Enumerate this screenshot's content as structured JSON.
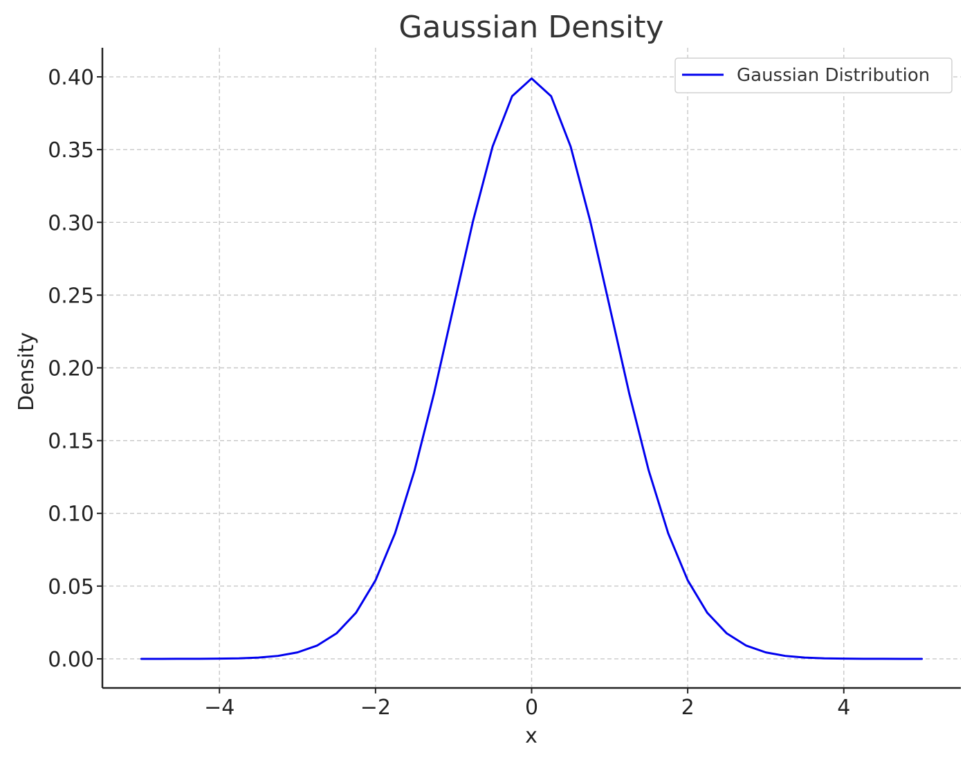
{
  "chart_data": {
    "type": "line",
    "title": "Gaussian Density",
    "xlabel": "x",
    "ylabel": "Density",
    "xlim": [
      -5.5,
      5.5
    ],
    "ylim": [
      -0.02,
      0.42
    ],
    "x_ticks": [
      -4,
      -2,
      0,
      2,
      4
    ],
    "x_tick_labels": [
      "−4",
      "−2",
      "0",
      "2",
      "4"
    ],
    "y_ticks": [
      0.0,
      0.05,
      0.1,
      0.15,
      0.2,
      0.25,
      0.3,
      0.35,
      0.4
    ],
    "y_tick_labels": [
      "0.00",
      "0.05",
      "0.10",
      "0.15",
      "0.20",
      "0.25",
      "0.30",
      "0.35",
      "0.40"
    ],
    "grid": true,
    "legend_position": "top-right",
    "series": [
      {
        "name": "Gaussian Distribution",
        "color": "#0000ee",
        "x": [
          -5.0,
          -4.75,
          -4.5,
          -4.25,
          -4.0,
          -3.75,
          -3.5,
          -3.25,
          -3.0,
          -2.75,
          -2.5,
          -2.25,
          -2.0,
          -1.75,
          -1.5,
          -1.25,
          -1.0,
          -0.75,
          -0.5,
          -0.25,
          0.0,
          0.25,
          0.5,
          0.75,
          1.0,
          1.25,
          1.5,
          1.75,
          2.0,
          2.25,
          2.5,
          2.75,
          3.0,
          3.25,
          3.5,
          3.75,
          4.0,
          4.25,
          4.5,
          4.75,
          5.0
        ],
        "y": [
          1.5e-06,
          5.2e-06,
          1.6e-05,
          4.9e-05,
          0.000134,
          0.000353,
          0.000873,
          0.00203,
          0.00443,
          0.00909,
          0.0175,
          0.0317,
          0.054,
          0.0863,
          0.1295,
          0.1826,
          0.242,
          0.3011,
          0.3521,
          0.3867,
          0.3989,
          0.3867,
          0.3521,
          0.3011,
          0.242,
          0.1826,
          0.1295,
          0.0863,
          0.054,
          0.0317,
          0.0175,
          0.00909,
          0.00443,
          0.00203,
          0.000873,
          0.000353,
          0.000134,
          4.9e-05,
          1.6e-05,
          5.2e-06,
          1.5e-06
        ]
      }
    ]
  }
}
